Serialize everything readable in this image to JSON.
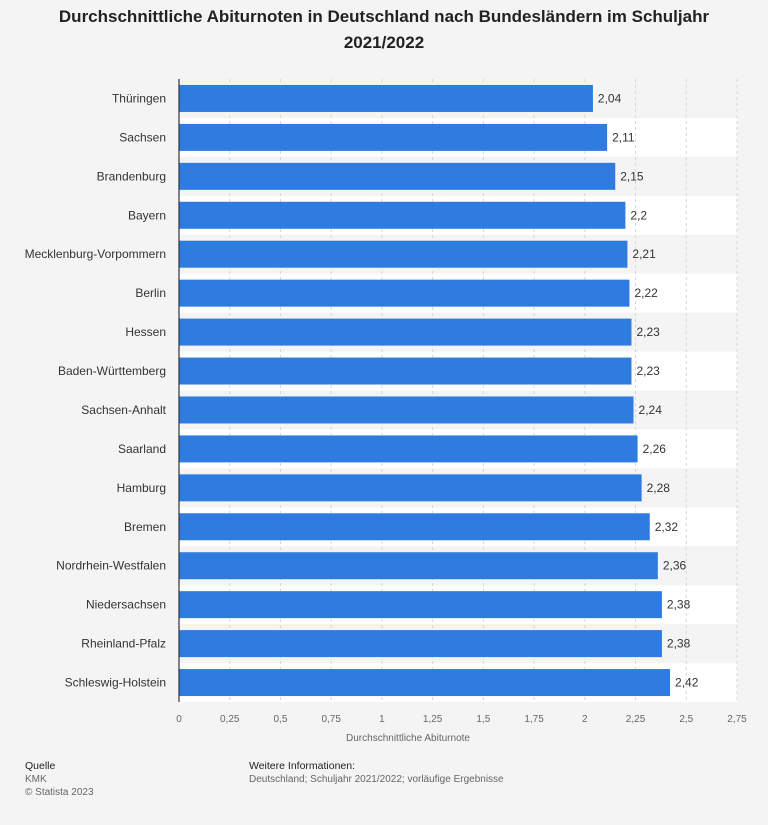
{
  "chart_data": {
    "type": "bar",
    "orientation": "horizontal",
    "title": "Durchschnittliche Abiturnoten in Deutschland nach Bundesländern im Schuljahr 2021/2022",
    "xlabel": "Durchschnittliche Abiturnote",
    "xlim": [
      0,
      2.75
    ],
    "ticks": [
      "0",
      "0,25",
      "0,5",
      "0,75",
      "1",
      "1,25",
      "1,5",
      "1,75",
      "2",
      "2,25",
      "2,5",
      "2,75"
    ],
    "tick_values": [
      0,
      0.25,
      0.5,
      0.75,
      1,
      1.25,
      1.5,
      1.75,
      2,
      2.25,
      2.5,
      2.75
    ],
    "grid": true,
    "bar_color": "#2f7ce0",
    "categories": [
      "Thüringen",
      "Sachsen",
      "Brandenburg",
      "Bayern",
      "Mecklenburg-Vorpommern",
      "Berlin",
      "Hessen",
      "Baden-Württemberg",
      "Sachsen-Anhalt",
      "Saarland",
      "Hamburg",
      "Bremen",
      "Nordrhein-Westfalen",
      "Niedersachsen",
      "Rheinland-Pfalz",
      "Schleswig-Holstein"
    ],
    "values": [
      2.04,
      2.11,
      2.15,
      2.2,
      2.21,
      2.22,
      2.23,
      2.23,
      2.24,
      2.26,
      2.28,
      2.32,
      2.36,
      2.38,
      2.38,
      2.42
    ],
    "value_labels": [
      "2,04",
      "2,11",
      "2,15",
      "2,2",
      "2,21",
      "2,22",
      "2,23",
      "2,23",
      "2,24",
      "2,26",
      "2,28",
      "2,32",
      "2,36",
      "2,38",
      "2,38",
      "2,42"
    ]
  },
  "footer": {
    "source_heading": "Quelle",
    "source": "KMK",
    "copyright": "© Statista 2023",
    "info_heading": "Weitere Informationen:",
    "info": "Deutschland; Schuljahr 2021/2022; vorläufige Ergebnisse"
  }
}
